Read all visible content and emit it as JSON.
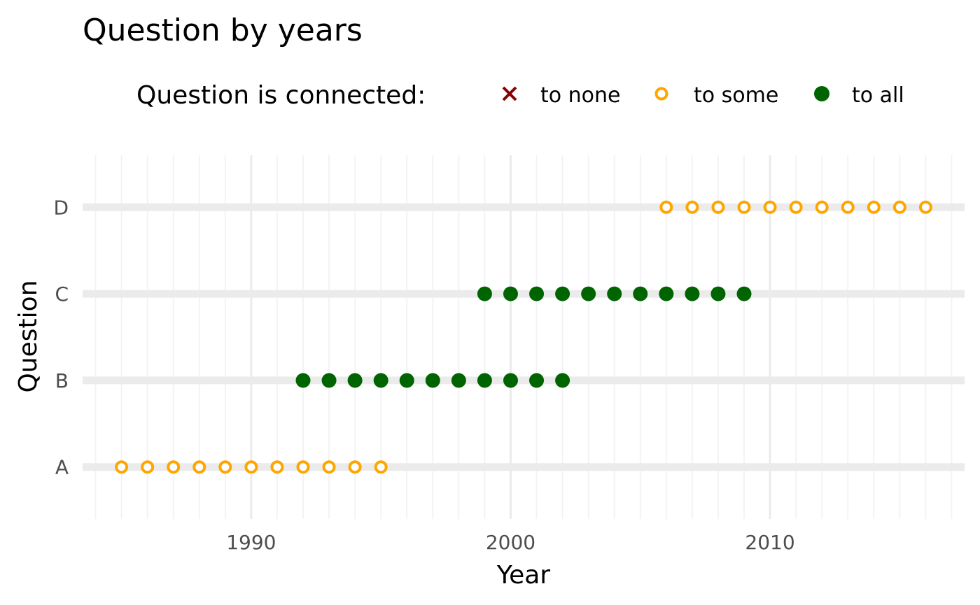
{
  "chart_data": {
    "type": "scatter",
    "title": "Question by years",
    "xlabel": "Year",
    "ylabel": "Question",
    "xlim": [
      1983.5,
      2017.5
    ],
    "x_ticks": [
      1990,
      2000,
      2010
    ],
    "categories": [
      "A",
      "B",
      "C",
      "D"
    ],
    "grid": true,
    "legend": {
      "title": "Question is connected:",
      "position": "top",
      "entries": [
        {
          "label": "to none",
          "shape": "cross",
          "color": "#8b0000"
        },
        {
          "label": "to some",
          "shape": "open-circle",
          "color": "#ffa500"
        },
        {
          "label": "to all",
          "shape": "filled-circle",
          "color": "#006400"
        }
      ]
    },
    "series": [
      {
        "question": "A",
        "connection": "to some",
        "years": [
          1985,
          1986,
          1987,
          1988,
          1989,
          1990,
          1991,
          1992,
          1993,
          1994,
          1995
        ]
      },
      {
        "question": "B",
        "connection": "to all",
        "years": [
          1992,
          1993,
          1994,
          1995,
          1996,
          1997,
          1998,
          1999,
          2000,
          2001,
          2002
        ]
      },
      {
        "question": "C",
        "connection": "to all",
        "years": [
          1999,
          2000,
          2001,
          2002,
          2003,
          2004,
          2005,
          2006,
          2007,
          2008,
          2009
        ]
      },
      {
        "question": "D",
        "connection": "to some",
        "years": [
          2006,
          2007,
          2008,
          2009,
          2010,
          2011,
          2012,
          2013,
          2014,
          2015,
          2016
        ]
      }
    ],
    "colors": {
      "to none": "#8b0000",
      "to some": "#ffa500",
      "to all": "#006400",
      "band": "#ebebeb",
      "grid_major": "#ebebeb",
      "grid_minor": "#f2f2f2"
    }
  }
}
